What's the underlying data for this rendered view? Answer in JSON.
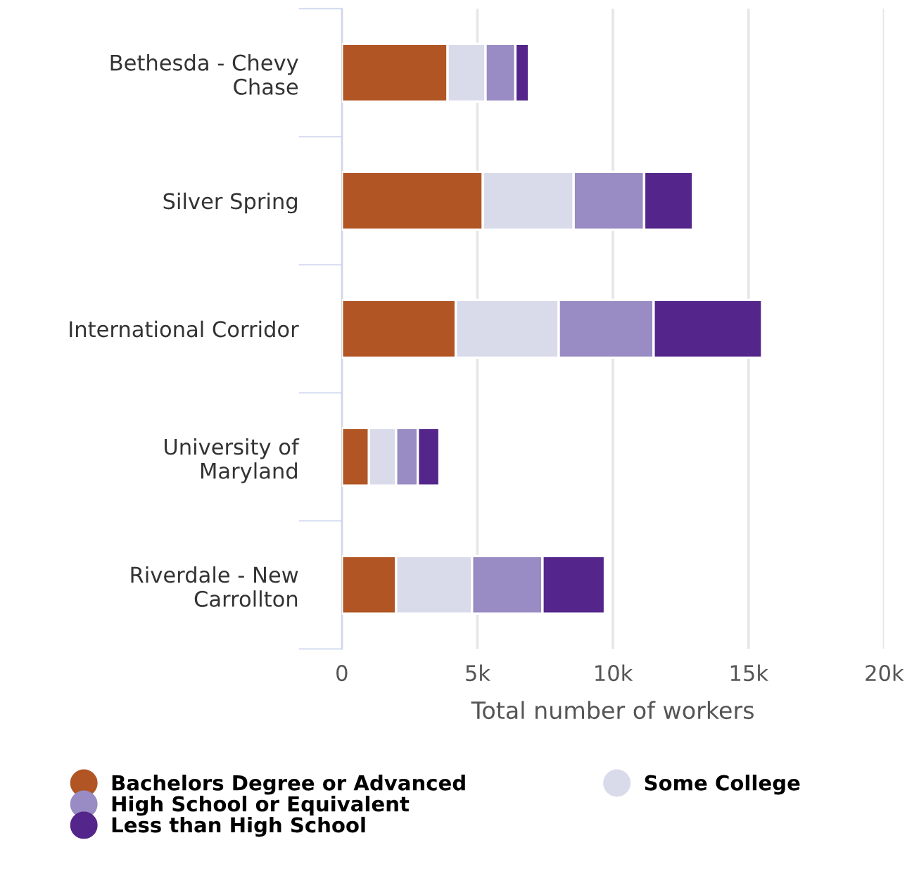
{
  "chart_data": {
    "type": "bar",
    "orientation": "horizontal",
    "stacked": true,
    "categories": [
      "Bethesda - Chevy\nChase",
      "Silver Spring",
      "International Corridor",
      "University of\nMaryland",
      "Riverdale - New\nCarrollton"
    ],
    "series": [
      {
        "name": "Bachelors Degree or Advanced",
        "color": "#b05523",
        "values": [
          3900,
          5200,
          4200,
          1000,
          2000
        ]
      },
      {
        "name": "Some College",
        "color": "#d9dbeb",
        "values": [
          1400,
          3350,
          3800,
          1000,
          2800
        ]
      },
      {
        "name": "High School or Equivalent",
        "color": "#998bc3",
        "values": [
          1100,
          2600,
          3500,
          800,
          2600
        ]
      },
      {
        "name": "Less than High School",
        "color": "#54258a",
        "values": [
          500,
          1800,
          4000,
          800,
          2300
        ]
      }
    ],
    "xlabel": "Total number of workers",
    "xlim": [
      0,
      20000
    ],
    "xticks": [
      0,
      {
        "value": 5000,
        "label": "5k"
      },
      {
        "value": 10000,
        "label": "10k"
      },
      {
        "value": 15000,
        "label": "15k"
      },
      {
        "value": 20000,
        "label": "20k"
      }
    ],
    "grid": "x",
    "legend": "bottom"
  }
}
